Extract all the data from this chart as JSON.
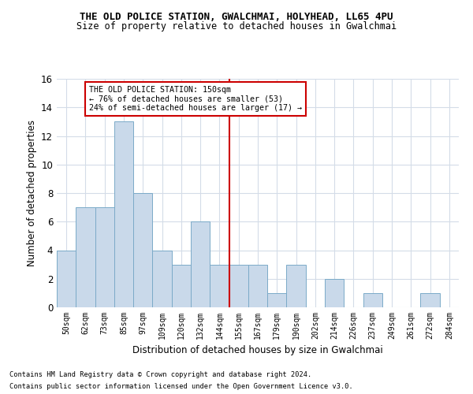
{
  "title1": "THE OLD POLICE STATION, GWALCHMAI, HOLYHEAD, LL65 4PU",
  "title2": "Size of property relative to detached houses in Gwalchmai",
  "xlabel": "Distribution of detached houses by size in Gwalchmai",
  "ylabel": "Number of detached properties",
  "bin_labels": [
    "50sqm",
    "62sqm",
    "73sqm",
    "85sqm",
    "97sqm",
    "109sqm",
    "120sqm",
    "132sqm",
    "144sqm",
    "155sqm",
    "167sqm",
    "179sqm",
    "190sqm",
    "202sqm",
    "214sqm",
    "226sqm",
    "237sqm",
    "249sqm",
    "261sqm",
    "272sqm",
    "284sqm"
  ],
  "bar_heights": [
    4,
    7,
    7,
    13,
    8,
    4,
    3,
    6,
    3,
    3,
    3,
    1,
    3,
    0,
    2,
    0,
    1,
    0,
    0,
    1,
    0
  ],
  "bar_color": "#c9d9ea",
  "bar_edge_color": "#7baac8",
  "vline_x": 8.5,
  "vline_color": "#cc0000",
  "annotation_text": "THE OLD POLICE STATION: 150sqm\n← 76% of detached houses are smaller (53)\n24% of semi-detached houses are larger (17) →",
  "annotation_box_color": "#ffffff",
  "annotation_box_edge": "#cc0000",
  "ylim": [
    0,
    16
  ],
  "yticks": [
    0,
    2,
    4,
    6,
    8,
    10,
    12,
    14,
    16
  ],
  "footer1": "Contains HM Land Registry data © Crown copyright and database right 2024.",
  "footer2": "Contains public sector information licensed under the Open Government Licence v3.0.",
  "bg_color": "#ffffff",
  "grid_color": "#d4dce8"
}
